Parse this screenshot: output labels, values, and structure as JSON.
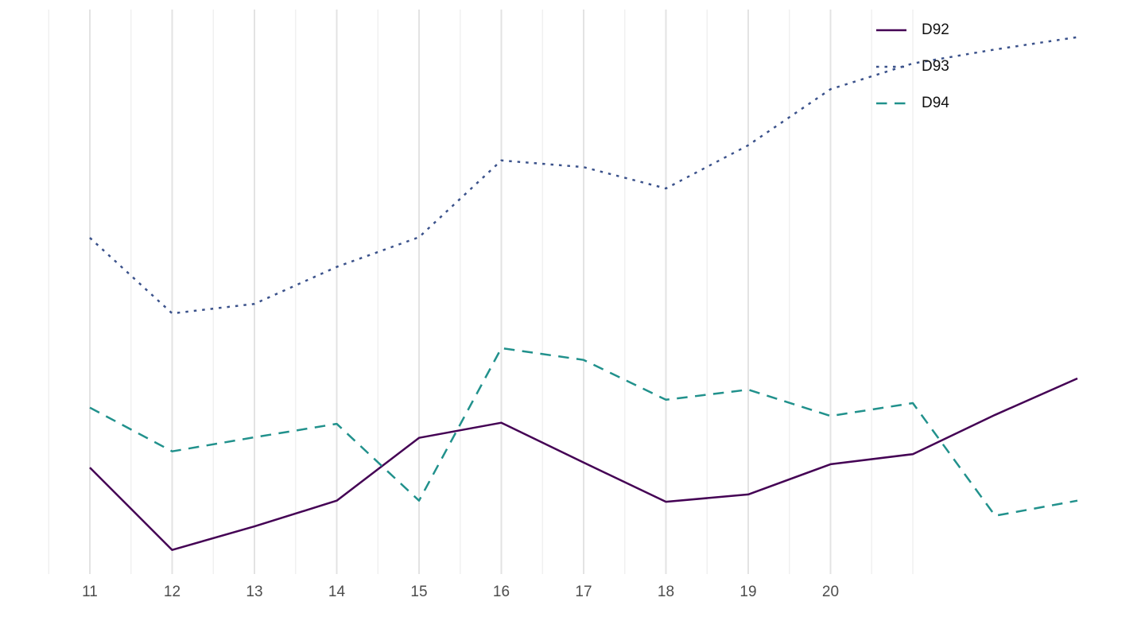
{
  "chart_data": {
    "type": "line",
    "x": [
      11,
      12,
      13,
      14,
      15,
      16,
      17,
      18,
      19,
      20,
      21,
      22,
      23
    ],
    "series": [
      {
        "name": "D92",
        "color": "#440154",
        "linestyle": "solid",
        "values": [
          18.0,
          3.3,
          7.5,
          12.1,
          23.3,
          26.0,
          18.9,
          11.9,
          13.2,
          18.6,
          20.4,
          27.4,
          33.9
        ]
      },
      {
        "name": "D93",
        "color": "#3B528B",
        "linestyle": "dotted",
        "values": [
          59.0,
          45.5,
          47.2,
          53.8,
          59.1,
          72.8,
          71.6,
          67.8,
          75.5,
          85.5,
          90.1,
          92.6,
          94.8
        ]
      },
      {
        "name": "D94",
        "color": "#21918C",
        "linestyle": "dashed",
        "values": [
          28.7,
          20.9,
          23.4,
          25.8,
          12.1,
          39.3,
          37.2,
          30.1,
          31.9,
          27.2,
          29.5,
          9.4,
          12.1
        ]
      }
    ],
    "x_ticks": [
      11,
      12,
      13,
      14,
      15,
      16,
      17,
      18,
      19,
      20
    ],
    "x_tick_labels": [
      "11",
      "12",
      "13",
      "14",
      "15",
      "16",
      "17",
      "18",
      "19",
      "20"
    ],
    "xlim": [
      10.5,
      23.8
    ],
    "ylim": [
      0,
      100
    ],
    "grid": "vertical-only",
    "grid_major_color": "#e3e3e3",
    "grid_minor_color": "#efefef",
    "tick_label_color": "#4d4d4d",
    "legend_position": "top-right"
  }
}
